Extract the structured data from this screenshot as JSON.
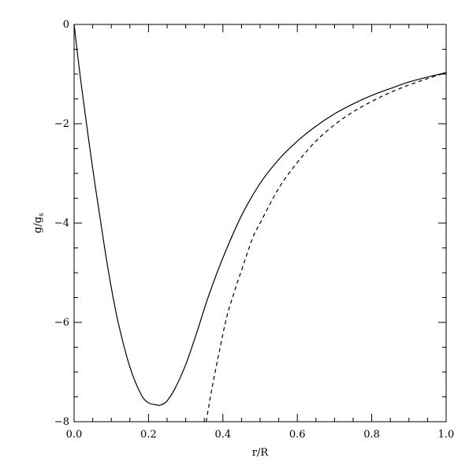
{
  "chart_data": {
    "type": "line",
    "xlabel": "r/R",
    "ylabel": "g/g",
    "ylabel_subscript": "s",
    "xlim": [
      0.0,
      1.0
    ],
    "ylim": [
      -8.0,
      0.0
    ],
    "x_ticks": [
      0.0,
      0.2,
      0.4,
      0.6,
      0.8,
      1.0
    ],
    "x_tick_labels": [
      "0.0",
      "0.2",
      "0.4",
      "0.6",
      "0.8",
      "1.0"
    ],
    "y_ticks": [
      0,
      -2,
      -4,
      -6,
      -8
    ],
    "y_tick_labels": [
      "0",
      "−2",
      "−4",
      "−6",
      "−8"
    ],
    "grid": false,
    "series": [
      {
        "style": "solid",
        "x": [
          0.0,
          0.02,
          0.05,
          0.08,
          0.1,
          0.12,
          0.15,
          0.18,
          0.2,
          0.22,
          0.23,
          0.24,
          0.25,
          0.27,
          0.3,
          0.33,
          0.36,
          0.4,
          0.45,
          0.5,
          0.55,
          0.6,
          0.65,
          0.7,
          0.75,
          0.8,
          0.85,
          0.9,
          0.95,
          1.0
        ],
        "y": [
          0.0,
          -1.25,
          -2.9,
          -4.4,
          -5.3,
          -6.05,
          -6.9,
          -7.45,
          -7.62,
          -7.66,
          -7.67,
          -7.64,
          -7.58,
          -7.35,
          -6.85,
          -6.2,
          -5.5,
          -4.7,
          -3.85,
          -3.2,
          -2.72,
          -2.35,
          -2.05,
          -1.8,
          -1.6,
          -1.43,
          -1.29,
          -1.16,
          -1.06,
          -0.97
        ]
      },
      {
        "style": "dashed",
        "x": [
          0.355,
          0.37,
          0.39,
          0.41,
          0.43,
          0.45,
          0.48,
          0.5,
          0.55,
          0.6,
          0.65,
          0.7,
          0.75,
          0.8,
          0.85,
          0.9,
          0.95,
          1.0
        ],
        "y": [
          -8.0,
          -7.35,
          -6.6,
          -5.9,
          -5.4,
          -4.95,
          -4.3,
          -4.0,
          -3.3,
          -2.78,
          -2.35,
          -2.02,
          -1.76,
          -1.55,
          -1.37,
          -1.22,
          -1.09,
          -0.97
        ]
      }
    ]
  }
}
